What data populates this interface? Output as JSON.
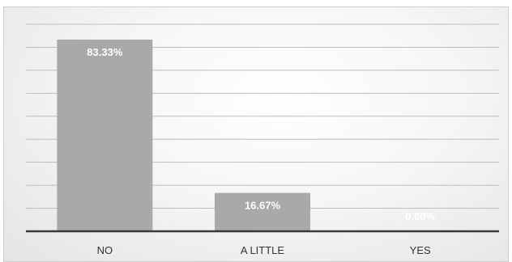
{
  "chart_data": {
    "type": "bar",
    "categories": [
      "NO",
      "A LITTLE",
      "YES"
    ],
    "values": [
      83.33,
      16.67,
      0.0
    ],
    "data_labels": [
      "83.33%",
      "16.67%",
      "0.00%"
    ],
    "title": "",
    "xlabel": "",
    "ylabel": "",
    "ylim": [
      0,
      90
    ],
    "grid": true,
    "legend": "none",
    "colors": {
      "bar": "#a9a9a9",
      "label": "#ffffff",
      "axis": "#3a3a3a",
      "grid": "#bdbdbd"
    }
  }
}
